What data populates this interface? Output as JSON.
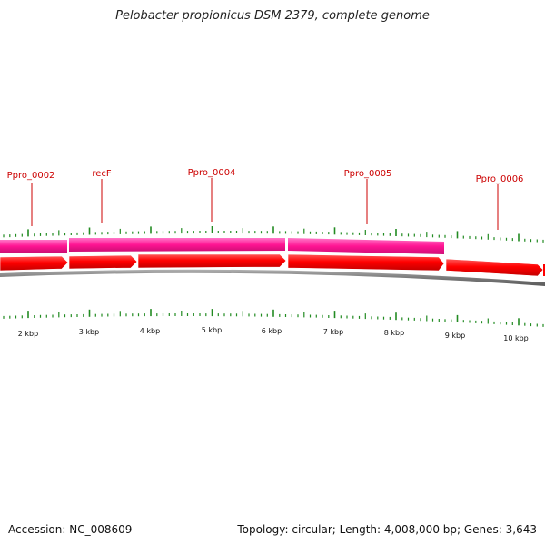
{
  "title": "Pelobacter propionicus DSM 2379, complete genome",
  "footer": {
    "accession": "Accession: NC_008609",
    "summary": "Topology: circular; Length: 4,008,000 bp; Genes: 3,643"
  },
  "gene_labels": [
    {
      "text": "Ppro_0002"
    },
    {
      "text": "recF"
    },
    {
      "text": "Ppro_0004"
    },
    {
      "text": "Ppro_0005"
    },
    {
      "text": "Ppro_0006"
    }
  ],
  "kbp_labels": [
    "2 kbp",
    "3 kbp",
    "4 kbp",
    "5 kbp",
    "6 kbp",
    "7 kbp",
    "8 kbp",
    "9 kbp",
    "10 kbp"
  ],
  "colors": {
    "cds": "#ff0000",
    "gene": "#ff1493",
    "backbone": "#808080",
    "tick": "#228b22",
    "label": "#cc0000"
  }
}
